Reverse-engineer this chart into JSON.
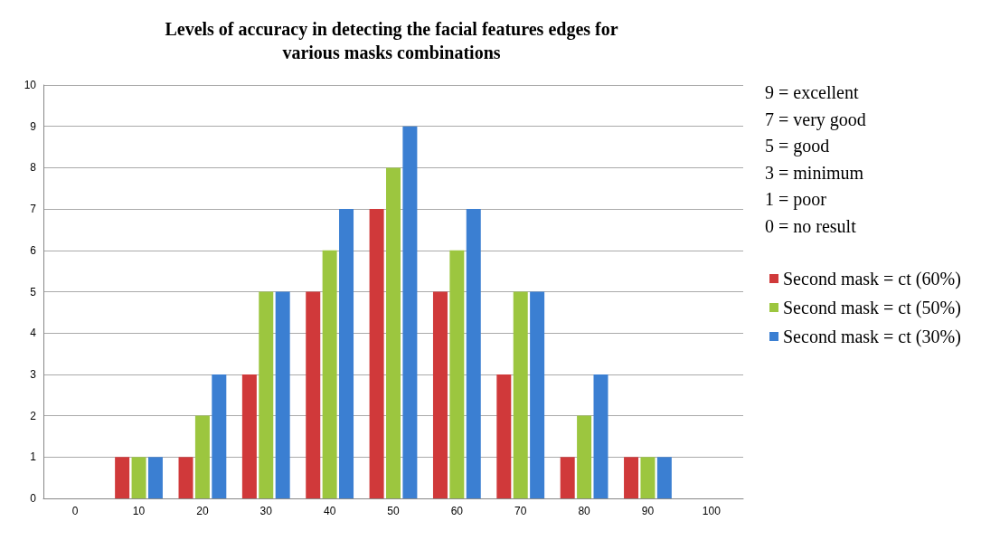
{
  "chart_data": {
    "type": "bar",
    "title": "Levels of accuracy in detecting the facial features edges for\nvarious masks combinations",
    "categories": [
      "0",
      "10",
      "20",
      "30",
      "40",
      "50",
      "60",
      "70",
      "80",
      "90",
      "100"
    ],
    "series": [
      {
        "name": "Second mask = ct (60%)",
        "color": "#d0393a",
        "values": [
          null,
          1,
          1,
          3,
          5,
          7,
          5,
          3,
          1,
          1,
          null
        ]
      },
      {
        "name": "Second mask = ct (50%)",
        "color": "#9cc63f",
        "values": [
          null,
          1,
          2,
          5,
          6,
          8,
          6,
          5,
          2,
          1,
          null
        ]
      },
      {
        "name": "Second mask = ct (30%)",
        "color": "#3b7fd2",
        "values": [
          null,
          1,
          3,
          5,
          7,
          9,
          7,
          5,
          3,
          1,
          null
        ]
      }
    ],
    "ylim": [
      0,
      10
    ],
    "yticks": [
      0,
      1,
      2,
      3,
      4,
      5,
      6,
      7,
      8,
      9,
      10
    ],
    "grid": "y",
    "legend": "right",
    "annotations": [
      "9 = excellent",
      "7 = very good",
      "5 = good",
      "3 = minimum",
      "1 = poor",
      "0 = no result"
    ]
  }
}
